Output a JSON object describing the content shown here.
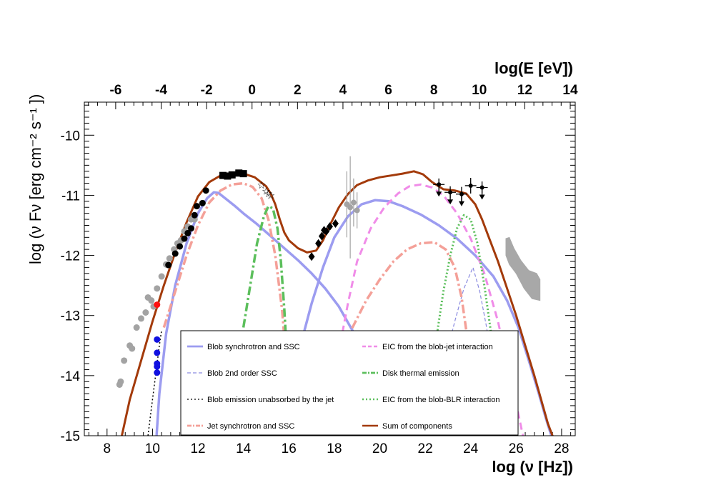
{
  "chart_data": {
    "type": "line",
    "xlabel": "log (ν [Hz])",
    "ylabel": "log (ν Fν [erg cm⁻² s⁻¹ ])",
    "top_xlabel": "log(E [eV])",
    "xlim": [
      7.0,
      28.6
    ],
    "ylim": [
      -15.0,
      -9.45
    ],
    "x_ticks": [
      8,
      10,
      12,
      14,
      16,
      18,
      20,
      22,
      24,
      26,
      28
    ],
    "y_ticks": [
      -10,
      -11,
      -12,
      -13,
      -14,
      -15
    ],
    "top_ticks": [
      -6,
      -4,
      -2,
      0,
      2,
      4,
      6,
      8,
      10,
      12,
      14
    ],
    "top_offset": 14.38,
    "legend": {
      "left": [
        "Blob synchrotron and SSC",
        "Blob 2nd order SSC",
        "Blob emission unabsorbed by the jet",
        "Jet synchrotron and SSC"
      ],
      "right": [
        "EIC from the blob-jet interaction",
        "Disk thermal emission",
        "EIC from the blob-BLR interaction",
        "Sum of components"
      ]
    },
    "series": [
      {
        "name": "Blob synchrotron and SSC",
        "color": "#9c9cf0",
        "style": "solid",
        "width": 3.5,
        "x": [
          10.18,
          10.3,
          10.6,
          11.0,
          11.5,
          12.0,
          12.4,
          12.7,
          12.9,
          13.2,
          13.6,
          14.0,
          14.6,
          15.2,
          15.8,
          16.4,
          17.0,
          17.6,
          18.2,
          18.8,
          19.3,
          19.7
        ],
        "y": [
          -15.0,
          -14.3,
          -13.3,
          -12.5,
          -11.8,
          -11.3,
          -11.05,
          -10.95,
          -10.96,
          -11.05,
          -11.17,
          -11.3,
          -11.48,
          -11.68,
          -11.88,
          -12.08,
          -12.3,
          -12.55,
          -12.85,
          -13.25,
          -13.75,
          -14.3
        ]
      },
      {
        "name": "Blob synchrotron and SSC (IC bump)",
        "color": "#9c9cf0",
        "style": "solid",
        "width": 3.5,
        "x": [
          16.65,
          17.0,
          17.5,
          18.0,
          18.6,
          19.2,
          19.8,
          20.4,
          21.0,
          21.8,
          22.6,
          23.4,
          24.2,
          25.0,
          25.6,
          26.1,
          26.6,
          27.0,
          27.3,
          27.55
        ],
        "y": [
          -13.3,
          -12.8,
          -12.2,
          -11.7,
          -11.35,
          -11.15,
          -11.08,
          -11.1,
          -11.18,
          -11.32,
          -11.5,
          -11.72,
          -12.0,
          -12.35,
          -12.75,
          -13.2,
          -13.8,
          -14.3,
          -14.7,
          -15.0
        ]
      },
      {
        "name": "Blob 2nd order SSC",
        "color": "#8a8ae0",
        "style": "dash-thin",
        "width": 1.2,
        "x": [
          22.6,
          22.9,
          23.3,
          23.7,
          24.1,
          24.4,
          24.7,
          25.0,
          25.2
        ],
        "y": [
          -14.3,
          -13.7,
          -13.1,
          -12.55,
          -12.2,
          -12.6,
          -13.2,
          -14.0,
          -14.6
        ]
      },
      {
        "name": "Blob emission unabsorbed by the jet",
        "color": "#000000",
        "style": "dot",
        "width": 1.5,
        "x": [
          9.8,
          9.9,
          10.0,
          10.1,
          10.2,
          10.3,
          10.4
        ],
        "y": [
          -15.0,
          -14.7,
          -14.4,
          -14.1,
          -13.8,
          -13.5,
          -13.25
        ]
      },
      {
        "name": "Jet synchrotron and SSC",
        "color": "#f4a098",
        "style": "dashdot",
        "width": 3.5,
        "x": [
          10.5,
          11.0,
          11.5,
          12.0,
          12.5,
          13.0,
          13.5,
          14.0,
          14.4,
          14.8,
          15.1,
          15.4,
          15.7,
          16.0
        ],
        "y": [
          -13.2,
          -12.6,
          -12.0,
          -11.5,
          -11.12,
          -10.92,
          -10.82,
          -10.8,
          -10.86,
          -11.05,
          -11.4,
          -12.0,
          -12.9,
          -14.3
        ]
      },
      {
        "name": "Jet synchrotron and SSC (IC bump)",
        "color": "#f4a098",
        "style": "dashdot",
        "width": 3.5,
        "x": [
          17.6,
          18.2,
          18.8,
          19.4,
          20.0,
          20.6,
          21.2,
          21.8,
          22.4,
          22.9,
          23.3,
          23.6,
          23.9,
          24.2
        ],
        "y": [
          -14.5,
          -13.75,
          -13.2,
          -12.75,
          -12.4,
          -12.1,
          -11.9,
          -11.8,
          -11.78,
          -11.9,
          -12.2,
          -12.7,
          -13.5,
          -14.5
        ]
      },
      {
        "name": "EIC from the blob-jet interaction",
        "color": "#f08ce8",
        "style": "dash",
        "width": 3,
        "x": [
          17.8,
          18.2,
          18.6,
          19.0,
          19.6,
          20.2,
          20.8,
          21.3,
          21.8,
          22.3,
          22.8,
          23.4,
          24.0,
          24.6,
          25.2,
          25.8,
          26.3
        ],
        "y": [
          -14.6,
          -13.6,
          -12.8,
          -12.1,
          -11.55,
          -11.2,
          -10.97,
          -10.85,
          -10.82,
          -10.87,
          -11.0,
          -11.3,
          -11.72,
          -12.3,
          -13.1,
          -14.1,
          -15.0
        ]
      },
      {
        "name": "Disk thermal emission",
        "color": "#5cbf5c",
        "style": "dashdot",
        "width": 3.5,
        "x": [
          14.0,
          14.3,
          14.6,
          14.9,
          15.1,
          15.3,
          15.5,
          15.65,
          15.8,
          15.95,
          16.1
        ],
        "y": [
          -13.2,
          -12.5,
          -11.8,
          -11.35,
          -11.18,
          -11.22,
          -11.55,
          -12.1,
          -12.9,
          -13.9,
          -15.0
        ]
      },
      {
        "name": "EIC from the blob-BLR interaction",
        "color": "#5cbf5c",
        "style": "dot",
        "width": 3,
        "x": [
          22.0,
          22.4,
          22.8,
          23.1,
          23.4,
          23.7,
          24.0,
          24.3,
          24.6,
          24.9,
          25.2,
          25.5
        ],
        "y": [
          -14.6,
          -13.6,
          -12.6,
          -12.0,
          -11.55,
          -11.33,
          -11.4,
          -11.8,
          -12.5,
          -13.3,
          -14.2,
          -15.0
        ]
      },
      {
        "name": "Sum of components",
        "color": "#a33a0a",
        "style": "solid",
        "width": 3,
        "x": [
          8.65,
          9.0,
          9.5,
          10.0,
          10.5,
          11.0,
          11.5,
          12.0,
          12.5,
          13.0,
          13.5,
          14.0,
          14.5,
          15.0,
          15.2,
          15.4,
          15.6,
          15.8,
          16.0,
          16.4,
          16.8,
          17.2,
          17.5,
          17.8,
          18.2,
          18.6,
          19.0,
          19.5,
          20.0,
          20.5,
          21.0,
          21.5,
          21.9,
          22.3,
          22.8,
          23.3,
          23.8,
          24.2,
          24.5,
          24.8,
          25.2,
          25.6,
          26.0,
          26.4,
          26.8,
          27.1,
          27.4,
          27.6
        ],
        "y": [
          -15.0,
          -14.4,
          -13.75,
          -13.1,
          -12.5,
          -11.95,
          -11.45,
          -11.02,
          -10.78,
          -10.67,
          -10.64,
          -10.64,
          -10.7,
          -10.85,
          -10.97,
          -11.15,
          -11.4,
          -11.62,
          -11.75,
          -11.88,
          -11.95,
          -11.92,
          -11.75,
          -11.5,
          -11.2,
          -10.98,
          -10.83,
          -10.75,
          -10.7,
          -10.67,
          -10.64,
          -10.6,
          -10.65,
          -10.78,
          -10.9,
          -10.92,
          -10.97,
          -11.15,
          -11.4,
          -11.7,
          -12.1,
          -12.55,
          -13.0,
          -13.5,
          -14.0,
          -14.4,
          -14.8,
          -15.0
        ]
      }
    ],
    "points": {
      "gray_radio": {
        "x": [
          8.55,
          8.6,
          8.75,
          9.0,
          9.1,
          9.3,
          9.5,
          9.7,
          9.8,
          9.95,
          10.05,
          10.2,
          10.4,
          10.6,
          10.75,
          10.95,
          11.1,
          11.25,
          11.4,
          11.55,
          11.7,
          11.85
        ],
        "y": [
          -14.15,
          -14.1,
          -13.75,
          -13.5,
          -13.55,
          -13.2,
          -13.05,
          -12.95,
          -12.7,
          -12.75,
          -12.85,
          -12.55,
          -12.35,
          -12.15,
          -12.05,
          -11.9,
          -11.8,
          -11.75,
          -11.6,
          -11.52,
          -11.4,
          -11.4
        ]
      },
      "red": {
        "x": [
          10.2
        ],
        "y": [
          -12.82
        ]
      },
      "blue": {
        "x": [
          10.2,
          10.2,
          10.2,
          10.2,
          10.2
        ],
        "y": [
          -13.4,
          -13.62,
          -13.8,
          -13.85,
          -13.95
        ]
      },
      "black_circles": {
        "x": [
          10.7,
          11.0,
          11.2,
          11.4,
          11.55,
          11.7,
          11.85,
          11.95,
          12.2,
          12.35
        ],
        "y": [
          -12.16,
          -11.97,
          -11.85,
          -11.72,
          -11.63,
          -11.55,
          -11.33,
          -11.18,
          -11.13,
          -10.92
        ]
      },
      "black_squares": {
        "x": [
          13.1,
          13.3,
          13.5,
          13.8,
          14.0
        ],
        "y": [
          -10.67,
          -10.68,
          -10.66,
          -10.63,
          -10.64
        ]
      },
      "uv_stars": {
        "x": [
          14.8,
          15.0,
          15.1,
          15.2
        ],
        "y": [
          -10.83,
          -10.93,
          -10.97,
          -11.0
        ]
      },
      "xray_diamonds": {
        "x": [
          17.0,
          17.3,
          17.45,
          17.55,
          17.65,
          17.8,
          18.05
        ],
        "y": [
          -12.02,
          -11.8,
          -11.68,
          -11.58,
          -11.6,
          -11.52,
          -11.47
        ]
      },
      "gray_xray": {
        "x": [
          18.55,
          18.7,
          18.85,
          19.0
        ],
        "y": [
          -11.15,
          -11.2,
          -11.12,
          -11.25
        ],
        "yerr": [
          0.55,
          0.85,
          0.4,
          0.3
        ]
      },
      "gamma_crosses": {
        "x": [
          22.6,
          23.1,
          23.6,
          24.0,
          24.5
        ],
        "y": [
          -10.82,
          -10.95,
          -10.98,
          -10.84,
          -10.87
        ],
        "xerr": [
          0.25,
          0.25,
          0.25,
          0.25,
          0.25
        ],
        "yerr": [
          0.1,
          0.1,
          0.12,
          0.13,
          0.1
        ],
        "upper_limit": [
          true,
          true,
          true,
          false,
          true
        ]
      },
      "tev_band": {
        "x": [
          25.55,
          25.7,
          25.9,
          26.2,
          26.55,
          26.9,
          27.05,
          27.05,
          26.7,
          26.35,
          26.0,
          25.7,
          25.55
        ],
        "y": [
          -11.72,
          -11.7,
          -11.88,
          -12.08,
          -12.25,
          -12.3,
          -12.4,
          -12.75,
          -12.72,
          -12.55,
          -12.3,
          -12.15,
          -12.0
        ]
      }
    }
  }
}
